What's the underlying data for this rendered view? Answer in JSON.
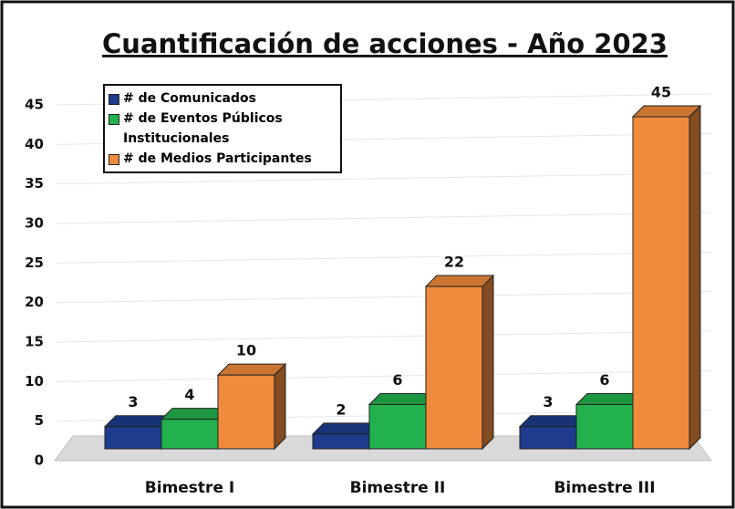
{
  "chart_data": {
    "type": "bar3d",
    "title": "Cuantificación de acciones - Año 2023",
    "categories": [
      "Bimestre I",
      "Bimestre II",
      "Bimestre III"
    ],
    "series": [
      {
        "name": "# de Comunicados",
        "color": "#1f3c8c",
        "values": [
          3,
          2,
          3
        ]
      },
      {
        "name": " # de Eventos Públicos Institucionales",
        "color": "#22b14c",
        "values": [
          4,
          6,
          6
        ]
      },
      {
        "name": "# de Medios Participantes",
        "color": "#f08a3c",
        "values": [
          10,
          22,
          45
        ]
      }
    ],
    "ylim": [
      0,
      45
    ],
    "yticks": [
      0,
      5,
      10,
      15,
      20,
      25,
      30,
      35,
      40,
      45
    ],
    "grid": true,
    "legend": "top-left"
  }
}
